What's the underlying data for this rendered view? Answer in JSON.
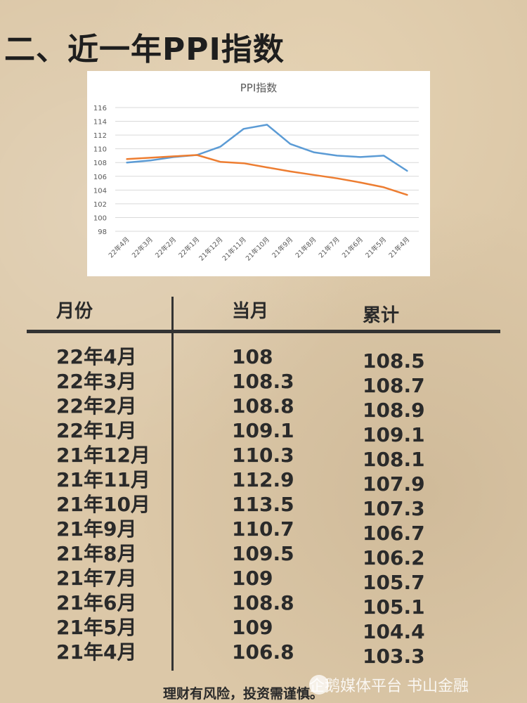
{
  "headline": "二、近一年PPI指数",
  "chart_data": {
    "type": "line",
    "title": "PPI指数",
    "categories": [
      "22年4月",
      "22年3月",
      "22年2月",
      "22年1月",
      "21年12月",
      "21年11月",
      "21年10月",
      "21年9月",
      "21年8月",
      "21年7月",
      "21年6月",
      "21年5月",
      "21年4月"
    ],
    "series": [
      {
        "values": [
          108,
          108.3,
          108.8,
          109.1,
          110.3,
          112.9,
          113.5,
          110.7,
          109.5,
          109,
          108.8,
          109,
          106.8
        ],
        "color": "#5b9bd5"
      },
      {
        "values": [
          108.5,
          108.7,
          108.9,
          109.1,
          108.1,
          107.9,
          107.3,
          106.7,
          106.2,
          105.7,
          105.1,
          104.4,
          103.3
        ],
        "color": "#ed7d31"
      }
    ],
    "ylim": [
      98,
      116
    ],
    "yticks": [
      98,
      100,
      102,
      104,
      106,
      108,
      110,
      112,
      114,
      116
    ],
    "grid": true
  },
  "table": {
    "headers": [
      "月份",
      "当月",
      "累计"
    ],
    "rows": [
      [
        "22年4月",
        "108",
        "108.5"
      ],
      [
        "22年3月",
        "108.3",
        "108.7"
      ],
      [
        "22年2月",
        "108.8",
        "108.9"
      ],
      [
        "22年1月",
        "109.1",
        "109.1"
      ],
      [
        "21年12月",
        "110.3",
        "108.1"
      ],
      [
        "21年11月",
        "112.9",
        "107.9"
      ],
      [
        "21年10月",
        "113.5",
        "107.3"
      ],
      [
        "21年9月",
        "110.7",
        "106.7"
      ],
      [
        "21年8月",
        "109.5",
        "106.2"
      ],
      [
        "21年7月",
        "109",
        "105.7"
      ],
      [
        "21年6月",
        "108.8",
        "105.1"
      ],
      [
        "21年5月",
        "109",
        "104.4"
      ],
      [
        "21年4月",
        "106.8",
        "103.3"
      ]
    ]
  },
  "disclaimer": "理财有风险，投资需谨慎。",
  "watermark": "企鹅媒体平台 书山金融"
}
